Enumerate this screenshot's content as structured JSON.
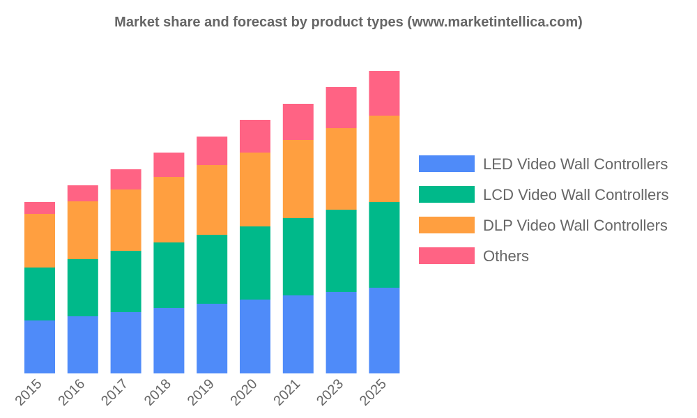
{
  "chart_data": {
    "type": "bar",
    "stacked": true,
    "title": "Market share and forecast by product types (www.marketintellica.com)",
    "xlabel": "",
    "ylabel": "",
    "categories": [
      "2015",
      "2016",
      "2017",
      "2018",
      "2019",
      "2020",
      "2021",
      "2023",
      "2025"
    ],
    "series": [
      {
        "name": "LED Video Wall Controllers",
        "color": "#4f8bf9",
        "values": [
          76,
          82,
          88,
          94,
          100,
          106,
          112,
          117,
          123
        ]
      },
      {
        "name": "LCD Video Wall Controllers",
        "color": "#00b98a",
        "values": [
          76,
          82,
          88,
          94,
          99,
          105,
          111,
          118,
          123
        ]
      },
      {
        "name": "DLP Video Wall Controllers",
        "color": "#ff9f40",
        "values": [
          77,
          83,
          88,
          94,
          100,
          106,
          112,
          117,
          124
        ]
      },
      {
        "name": "Others",
        "color": "#ff6384",
        "values": [
          17,
          23,
          29,
          35,
          41,
          47,
          52,
          59,
          64
        ]
      }
    ],
    "ylim": [
      0,
      434
    ],
    "y_axis_visible": false,
    "grid": false,
    "legend": "right"
  }
}
